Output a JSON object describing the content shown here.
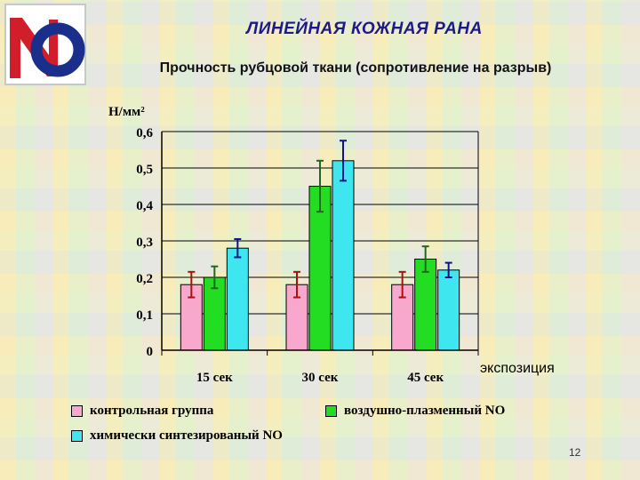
{
  "slide": {
    "title": "ЛИНЕЙНАЯ КОЖНАЯ РАНА",
    "subtitle": "Прочность рубцовой ткани (сопротивление на разрыв)",
    "page_number": "12"
  },
  "chart_data": {
    "type": "bar",
    "ylabel": "Н/мм²",
    "xlabel": "экспозиция",
    "categories": [
      "15 сек",
      "30 сек",
      "45 сек"
    ],
    "ylim": [
      0,
      0.6
    ],
    "yticks": [
      {
        "value": 0,
        "label": "0"
      },
      {
        "value": 0.1,
        "label": "0,1"
      },
      {
        "value": 0.2,
        "label": "0,2"
      },
      {
        "value": 0.3,
        "label": "0,3"
      },
      {
        "value": 0.4,
        "label": "0,4"
      },
      {
        "value": 0.5,
        "label": "0,5"
      },
      {
        "value": 0.6,
        "label": "0,6"
      }
    ],
    "grid": true,
    "series": [
      {
        "name": "контрольная группа",
        "color": "#f7a8cc",
        "errorColor": "#aa1111",
        "values": [
          0.18,
          0.18,
          0.18
        ],
        "errors": [
          0.035,
          0.035,
          0.035
        ]
      },
      {
        "name": "воздушно-плазменный NO",
        "color": "#22dd22",
        "errorColor": "#226622",
        "values": [
          0.2,
          0.45,
          0.25
        ],
        "errors": [
          0.03,
          0.07,
          0.035
        ]
      },
      {
        "name": "химически синтезированый NO",
        "color": "#3ee6f0",
        "errorColor": "#111188",
        "values": [
          0.28,
          0.52,
          0.22
        ],
        "errors": [
          0.025,
          0.055,
          0.02
        ]
      }
    ]
  }
}
